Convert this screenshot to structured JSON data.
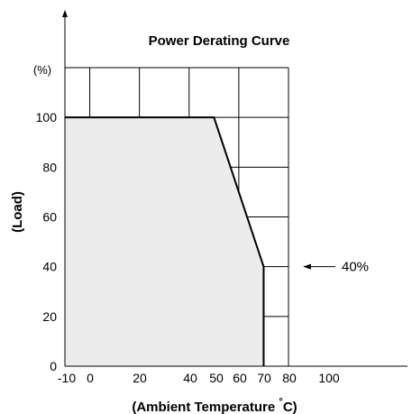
{
  "chart_data": {
    "type": "area",
    "title": "Power Derating Curve",
    "xlabel": "(Ambient Temperature °C)",
    "ylabel": "(Load)",
    "y_unit": "(%)",
    "x_ticks": [
      "-10",
      "0",
      "20",
      "40",
      "50",
      "60",
      "70",
      "80",
      "100"
    ],
    "y_ticks": [
      "0",
      "20",
      "40",
      "60",
      "80",
      "100"
    ],
    "xlim": [
      -10,
      80
    ],
    "ylim": [
      0,
      120
    ],
    "grid": true,
    "series": [
      {
        "x": [
          -10,
          50,
          70,
          70
        ],
        "y": [
          100,
          100,
          40,
          0
        ]
      }
    ],
    "annotation": {
      "text": "40%",
      "x": 70,
      "y": 40
    },
    "colors": {
      "fill": "#ececec",
      "line": "#000000",
      "grid": "#000000"
    }
  }
}
